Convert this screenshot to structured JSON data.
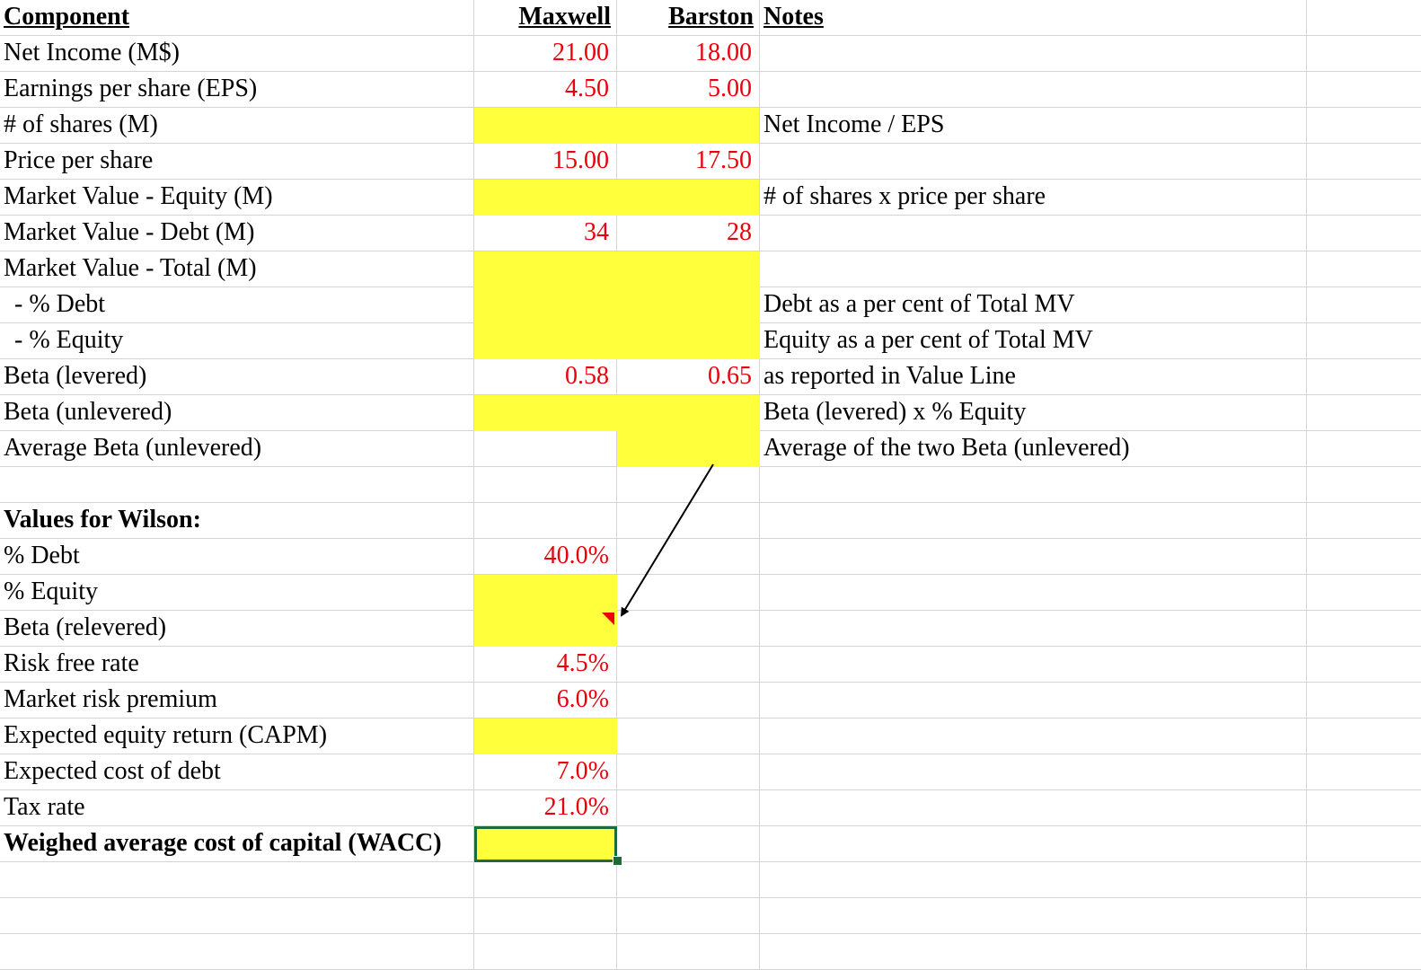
{
  "headers": {
    "component": "Component",
    "maxwell": "Maxwell",
    "barston": "Barston",
    "notes": "Notes"
  },
  "rows": [
    {
      "label": "Net Income (M$)",
      "maxwell": "21.00",
      "barston": "18.00",
      "note": ""
    },
    {
      "label": "Earnings per share (EPS)",
      "maxwell": "4.50",
      "barston": "5.00",
      "note": ""
    },
    {
      "label": "# of shares (M)",
      "maxwell": "",
      "barston": "",
      "note": "Net Income / EPS"
    },
    {
      "label": "Price per share",
      "maxwell": "15.00",
      "barston": "17.50",
      "note": ""
    },
    {
      "label": "Market Value - Equity (M)",
      "maxwell": "",
      "barston": "",
      "note": "# of shares x price per share"
    },
    {
      "label": "Market Value - Debt (M)",
      "maxwell": "34",
      "barston": "28",
      "note": ""
    },
    {
      "label": "Market Value - Total (M)",
      "maxwell": "",
      "barston": "",
      "note": ""
    },
    {
      "label": "- % Debt",
      "maxwell": "",
      "barston": "",
      "note": "Debt as a per cent of Total MV"
    },
    {
      "label": "- % Equity",
      "maxwell": "",
      "barston": "",
      "note": "Equity as a per cent of Total MV"
    },
    {
      "label": "Beta (levered)",
      "maxwell": "0.58",
      "barston": "0.65",
      "note": "as reported in Value Line"
    },
    {
      "label": "Beta (unlevered)",
      "maxwell": "",
      "barston": "",
      "note": "Beta (levered) x % Equity"
    },
    {
      "label": "Average Beta (unlevered)",
      "maxwell": "",
      "barston": "",
      "note": "Average of the two Beta (unlevered)"
    }
  ],
  "wilson": {
    "title": "Values for Wilson:",
    "rows": [
      {
        "label": "% Debt",
        "value": "40.0%"
      },
      {
        "label": "% Equity",
        "value": ""
      },
      {
        "label": "Beta (relevered)",
        "value": ""
      },
      {
        "label": "Risk free rate",
        "value": "4.5%"
      },
      {
        "label": "Market risk premium",
        "value": "6.0%"
      },
      {
        "label": "Expected equity return (CAPM)",
        "value": ""
      },
      {
        "label": "Expected cost of debt",
        "value": "7.0%"
      },
      {
        "label": "Tax rate",
        "value": "21.0%"
      },
      {
        "label": "Weighed average cost of capital (WACC)",
        "value": ""
      }
    ]
  },
  "colors": {
    "input_text": "#e8000b",
    "highlight_fill": "#ffff3b",
    "selection_border": "#1d6b3a",
    "gridline": "#d4d4d4"
  }
}
